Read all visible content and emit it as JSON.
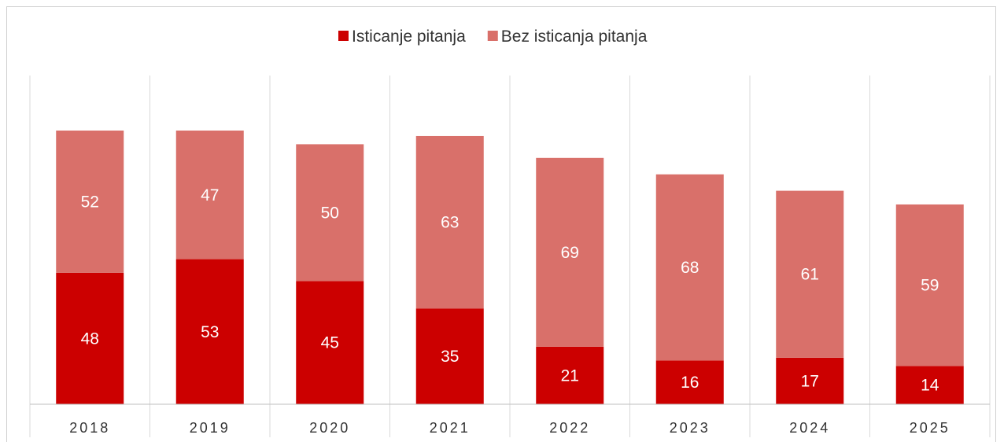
{
  "title": "",
  "chart_data": {
    "type": "bar",
    "stacked": true,
    "categories": [
      "2018",
      "2019",
      "2020",
      "2021",
      "2022",
      "2023",
      "2024",
      "2025"
    ],
    "series": [
      {
        "name": "Isticanje pitanja",
        "values": [
          48,
          53,
          45,
          35,
          21,
          16,
          17,
          14
        ],
        "color": "#cc0000"
      },
      {
        "name": "Bez isticanja pitanja",
        "values": [
          52,
          47,
          50,
          63,
          69,
          68,
          61,
          59
        ],
        "color": "#d9706a"
      }
    ],
    "legend_position": "top-center",
    "grid": "vertical-category-separators",
    "ylim": [
      0,
      120
    ],
    "xlabel": "",
    "ylabel": ""
  }
}
